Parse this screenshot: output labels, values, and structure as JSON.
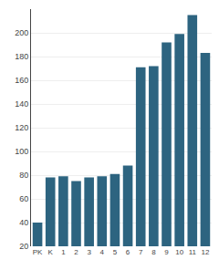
{
  "chart_data": {
    "type": "bar",
    "categories": [
      "PK",
      "K",
      "1",
      "2",
      "3",
      "4",
      "5",
      "6",
      "7",
      "8",
      "9",
      "10",
      "11",
      "12"
    ],
    "values": [
      40,
      78,
      79,
      75,
      78,
      79,
      81,
      88,
      171,
      172,
      192,
      199,
      215,
      183
    ],
    "color": "#2d6480",
    "ylim": [
      20,
      220
    ],
    "yticks": [
      20,
      40,
      60,
      80,
      100,
      120,
      140,
      160,
      180,
      200
    ],
    "grid": true
  }
}
